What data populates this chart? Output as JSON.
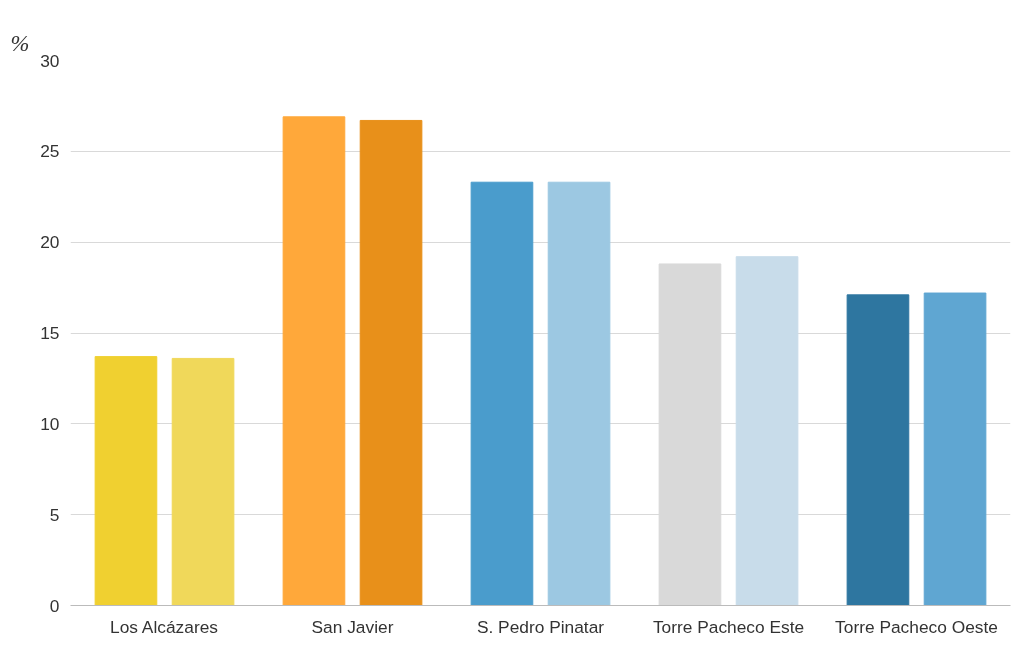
{
  "chart_data": {
    "type": "bar",
    "ylabel": "%",
    "categories": [
      "Los Alcázares",
      "San Javier",
      "S. Pedro Pinatar",
      "Torre Pacheco Este",
      "Torre Pacheco Oeste"
    ],
    "series": [
      {
        "colors": [
          "#f0d030",
          "#ffa83a",
          "#4a9ccc",
          "#d9d9d9",
          "#2e76a0"
        ],
        "values": [
          13.7,
          26.9,
          23.3,
          18.8,
          17.1
        ]
      },
      {
        "colors": [
          "#f0d85a",
          "#e8901a",
          "#9cc8e2",
          "#c8dcea",
          "#5fa6d2"
        ],
        "values": [
          13.6,
          26.7,
          23.3,
          19.2,
          17.2
        ]
      }
    ],
    "ylim": [
      0,
      30
    ],
    "yticks": [
      0,
      5,
      10,
      15,
      20,
      25,
      30
    ],
    "grid": "y"
  }
}
